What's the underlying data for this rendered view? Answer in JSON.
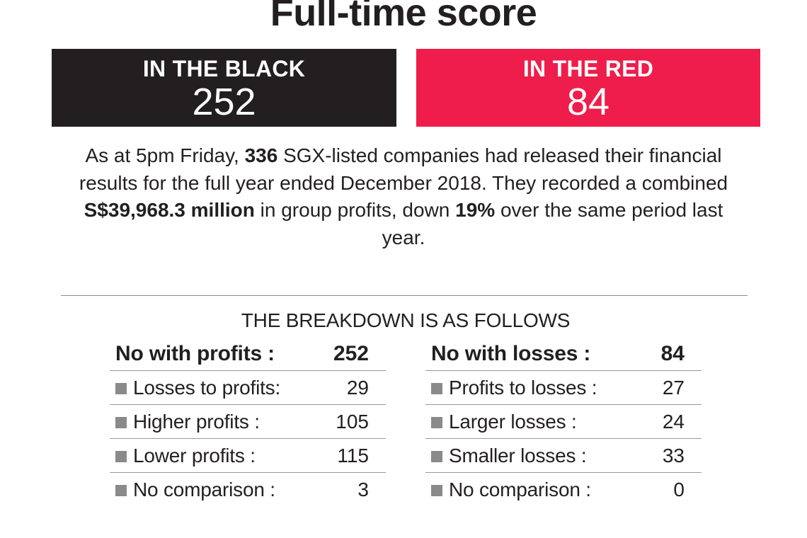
{
  "title": "Full-time score",
  "boxes": {
    "black": {
      "label": "IN THE BLACK",
      "value": "252",
      "color": "#231f20"
    },
    "red": {
      "label": "IN THE RED",
      "value": "84",
      "color": "#ee1d4b"
    }
  },
  "summary": {
    "p1": "As at 5pm Friday, ",
    "b1": "336",
    "p2": " SGX-listed companies had released their financial results for the full year ended December 2018. They recorded a combined ",
    "b2": "S$39,968.3 million",
    "p3": " in group profits, down ",
    "b3": "19%",
    "p4": " over the same period last year."
  },
  "breakdown": {
    "title": "THE BREAKDOWN IS AS FOLLOWS",
    "profits": {
      "header_label": "No with profits :",
      "header_value": "252",
      "rows": [
        {
          "label": "Losses to profits:",
          "value": "29"
        },
        {
          "label": "Higher profits :",
          "value": "105"
        },
        {
          "label": "Lower profits :",
          "value": "115"
        },
        {
          "label": "No comparison :",
          "value": "3"
        }
      ]
    },
    "losses": {
      "header_label": "No with losses :",
      "header_value": "84",
      "rows": [
        {
          "label": "Profits to losses :",
          "value": "27"
        },
        {
          "label": "Larger losses :",
          "value": "24"
        },
        {
          "label": "Smaller losses :",
          "value": "33"
        },
        {
          "label": "No comparison :",
          "value": "0"
        }
      ]
    }
  }
}
